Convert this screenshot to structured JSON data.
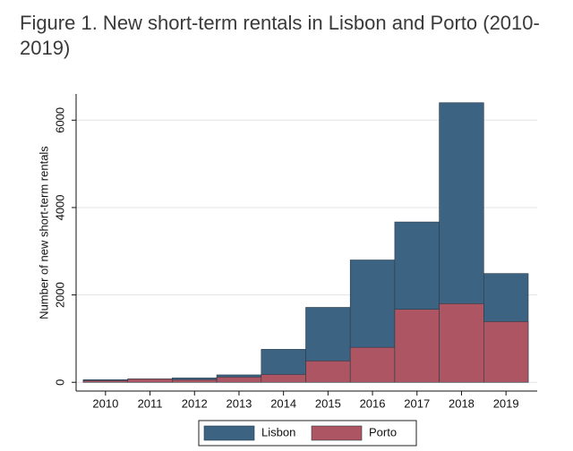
{
  "chart_data": {
    "type": "bar",
    "barmode": "overlay",
    "title": "Figure 1. New short-term rentals in Lisbon and Porto (2010-2019)",
    "y_label": "Number of new short-term rentals",
    "categories": [
      "2010",
      "2011",
      "2012",
      "2013",
      "2014",
      "2015",
      "2016",
      "2017",
      "2018",
      "2019"
    ],
    "series": [
      {
        "name": "Lisbon",
        "color": "#3d6382",
        "values": [
          60,
          80,
          100,
          170,
          755,
          1715,
          2800,
          3670,
          6400,
          2490
        ]
      },
      {
        "name": "Porto",
        "color": "#ad5562",
        "values": [
          40,
          80,
          60,
          120,
          180,
          490,
          800,
          1670,
          1800,
          1390
        ]
      }
    ],
    "ylim": [
      -200,
      6600
    ],
    "yticks": [
      0,
      2000,
      4000,
      6000
    ],
    "grid": true,
    "legend": "bottom"
  }
}
